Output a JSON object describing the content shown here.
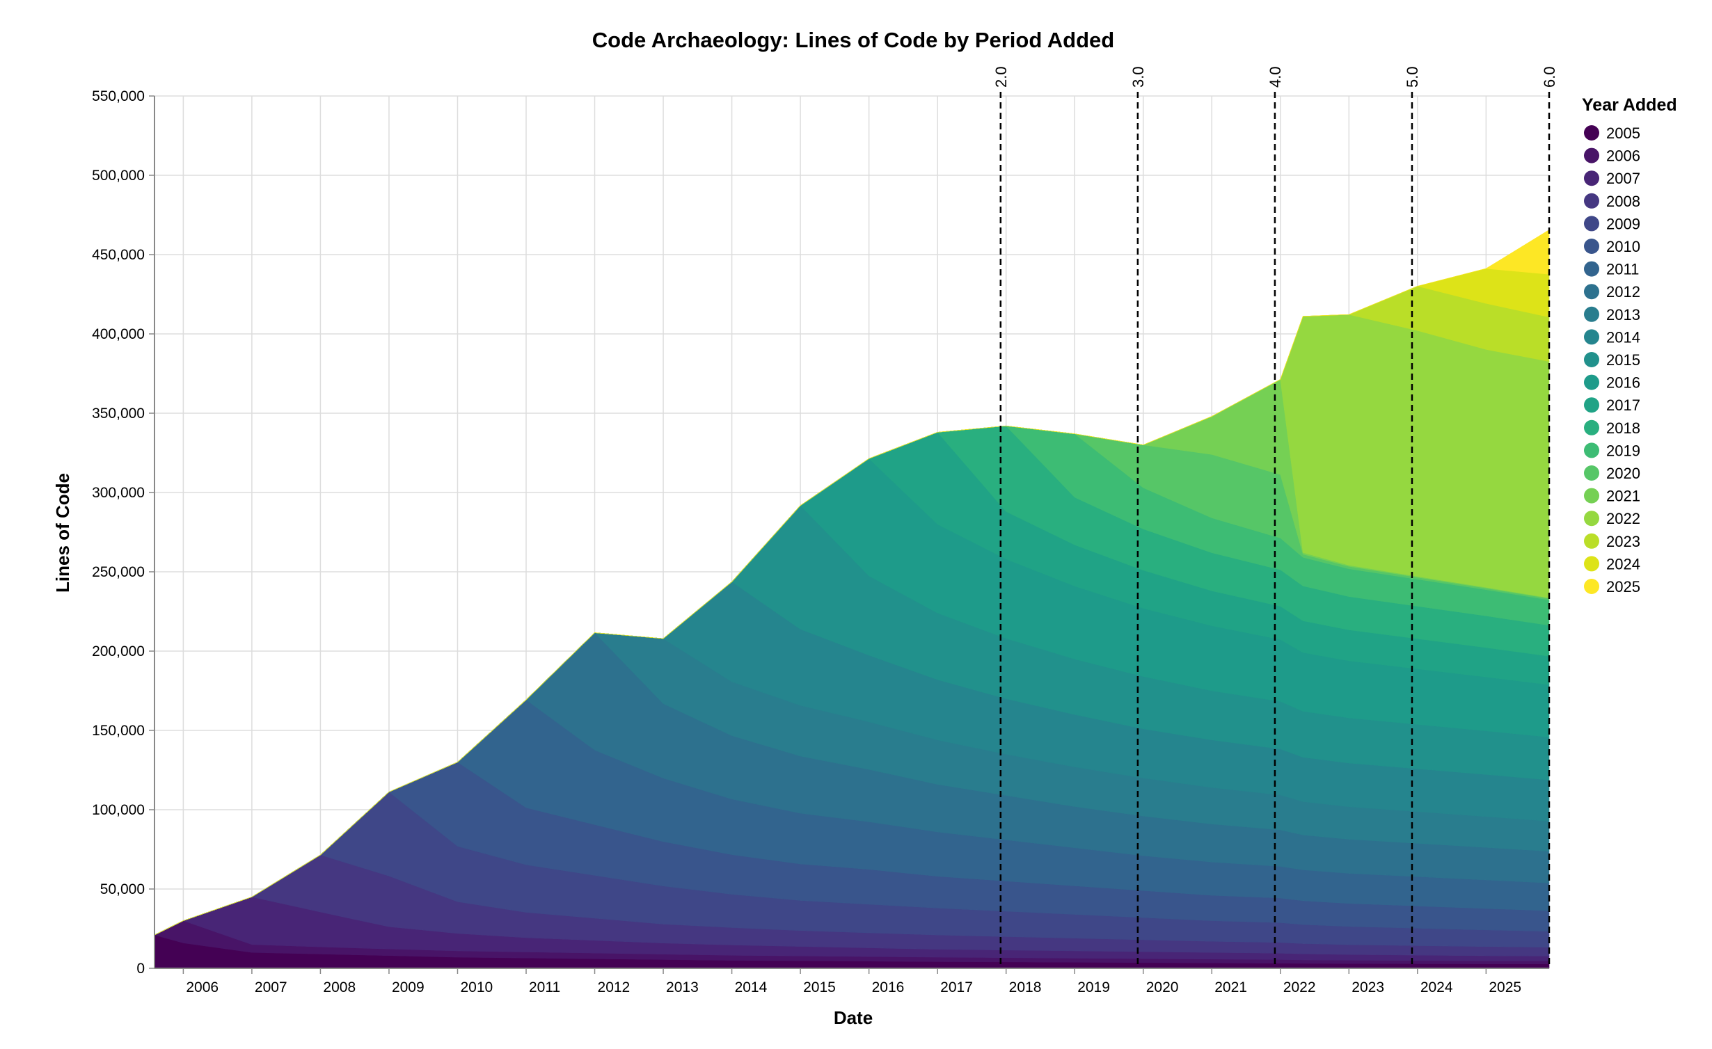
{
  "chart_data": {
    "type": "area",
    "stacked": true,
    "title": "Code Archaeology: Lines of Code by Period Added",
    "xlabel": "Date",
    "ylabel": "Lines of Code",
    "xlim": [
      2005.58,
      2025.92
    ],
    "ylim": [
      0,
      550000
    ],
    "grid": true,
    "x_tick_labels": [
      "2006",
      "2007",
      "2008",
      "2009",
      "2010",
      "2011",
      "2012",
      "2013",
      "2014",
      "2015",
      "2016",
      "2017",
      "2018",
      "2019",
      "2020",
      "2021",
      "2022",
      "2023",
      "2024",
      "2025"
    ],
    "y_tick_labels": [
      "0",
      "50,000",
      "100,000",
      "150,000",
      "200,000",
      "250,000",
      "300,000",
      "350,000",
      "400,000",
      "450,000",
      "500,000",
      "550,000"
    ],
    "y_ticks": [
      0,
      50000,
      100000,
      150000,
      200000,
      250000,
      300000,
      350000,
      400000,
      450000,
      500000,
      550000
    ],
    "legend_title": "Year Added",
    "legend_position": "right",
    "releases": [
      {
        "label": "2.0",
        "x": 2017.92
      },
      {
        "label": "3.0",
        "x": 2019.92
      },
      {
        "label": "4.0",
        "x": 2021.92
      },
      {
        "label": "5.0",
        "x": 2023.92
      },
      {
        "label": "6.0",
        "x": 2025.92
      }
    ],
    "x": [
      2005.58,
      2006.0,
      2007.0,
      2008.0,
      2009.0,
      2010.0,
      2011.0,
      2012.0,
      2013.0,
      2014.0,
      2015.0,
      2016.0,
      2017.0,
      2018.0,
      2019.0,
      2020.0,
      2021.0,
      2022.0,
      2022.33,
      2023.0,
      2024.0,
      2025.0,
      2025.92
    ],
    "series": [
      {
        "name": "2005",
        "color": "#440154",
        "values": [
          21000,
          16000,
          10000,
          9000,
          8000,
          7000,
          6500,
          6000,
          5500,
          5000,
          4800,
          4500,
          4200,
          4000,
          3800,
          3600,
          3400,
          3200,
          3100,
          3000,
          2900,
          2800,
          2800
        ]
      },
      {
        "name": "2006",
        "color": "#481467",
        "values": [
          0,
          14000,
          5000,
          4500,
          4200,
          4000,
          3800,
          3600,
          3400,
          3200,
          3000,
          2900,
          2800,
          2700,
          2600,
          2500,
          2400,
          2300,
          2200,
          2100,
          2000,
          1900,
          1900
        ]
      },
      {
        "name": "2007",
        "color": "#482576",
        "values": [
          0,
          0,
          30000,
          22000,
          14000,
          11000,
          9000,
          8000,
          7000,
          6500,
          6000,
          5500,
          5000,
          4800,
          4600,
          4400,
          4200,
          4000,
          3800,
          3600,
          3400,
          3200,
          3000
        ]
      },
      {
        "name": "2008",
        "color": "#453781",
        "values": [
          0,
          0,
          0,
          36000,
          32000,
          20000,
          16000,
          14000,
          12000,
          11000,
          10000,
          9500,
          9000,
          8500,
          8000,
          7500,
          7000,
          6800,
          6500,
          6200,
          6000,
          5800,
          5600
        ]
      },
      {
        "name": "2009",
        "color": "#3f4788",
        "values": [
          0,
          0,
          0,
          0,
          53000,
          35000,
          30000,
          27000,
          24000,
          21000,
          19000,
          18000,
          17000,
          16000,
          15000,
          14000,
          13000,
          12500,
          12000,
          11500,
          11000,
          10500,
          10000
        ]
      },
      {
        "name": "2010",
        "color": "#39558c",
        "values": [
          0,
          0,
          0,
          0,
          0,
          53000,
          36000,
          32000,
          28000,
          25000,
          23000,
          22000,
          20000,
          19000,
          18000,
          17000,
          16000,
          15500,
          15000,
          14500,
          14000,
          13500,
          13000
        ]
      },
      {
        "name": "2011",
        "color": "#32648e",
        "values": [
          0,
          0,
          0,
          0,
          0,
          0,
          68000,
          47000,
          40000,
          35000,
          32000,
          30000,
          28000,
          26000,
          24000,
          22000,
          21000,
          20000,
          19500,
          19000,
          18500,
          18000,
          17500
        ]
      },
      {
        "name": "2012",
        "color": "#2d718e",
        "values": [
          0,
          0,
          0,
          0,
          0,
          0,
          0,
          74000,
          47000,
          40000,
          36000,
          33000,
          30000,
          28000,
          26000,
          25000,
          24000,
          23000,
          22000,
          21500,
          21000,
          20500,
          20000
        ]
      },
      {
        "name": "2013",
        "color": "#297d8e",
        "values": [
          0,
          0,
          0,
          0,
          0,
          0,
          0,
          0,
          41000,
          34000,
          32000,
          30000,
          28000,
          26000,
          25000,
          24000,
          23000,
          22000,
          21000,
          20500,
          20000,
          19500,
          19000
        ]
      },
      {
        "name": "2014",
        "color": "#25858e",
        "values": [
          0,
          0,
          0,
          0,
          0,
          0,
          0,
          0,
          0,
          63000,
          48000,
          42000,
          38000,
          35000,
          33000,
          31000,
          30000,
          29000,
          28000,
          27500,
          27000,
          26500,
          26000
        ]
      },
      {
        "name": "2015",
        "color": "#21918c",
        "values": [
          0,
          0,
          0,
          0,
          0,
          0,
          0,
          0,
          0,
          0,
          78000,
          50000,
          42000,
          38000,
          35000,
          33000,
          31000,
          30000,
          29000,
          28500,
          28000,
          27500,
          27000
        ]
      },
      {
        "name": "2016",
        "color": "#1e9b8a",
        "values": [
          0,
          0,
          0,
          0,
          0,
          0,
          0,
          0,
          0,
          0,
          0,
          74000,
          56000,
          50000,
          46000,
          43000,
          41000,
          39000,
          37000,
          36000,
          35000,
          34000,
          33000
        ]
      },
      {
        "name": "2017",
        "color": "#20a386",
        "values": [
          0,
          0,
          0,
          0,
          0,
          0,
          0,
          0,
          0,
          0,
          0,
          0,
          58000,
          30000,
          26000,
          24000,
          22000,
          21000,
          20000,
          19500,
          19000,
          18500,
          18000
        ]
      },
      {
        "name": "2018",
        "color": "#29af7f",
        "values": [
          0,
          0,
          0,
          0,
          0,
          0,
          0,
          0,
          0,
          0,
          0,
          0,
          0,
          54000,
          30000,
          26000,
          24000,
          23000,
          22000,
          21000,
          20500,
          20000,
          19500
        ]
      },
      {
        "name": "2019",
        "color": "#3dbc74",
        "values": [
          0,
          0,
          0,
          0,
          0,
          0,
          0,
          0,
          0,
          0,
          0,
          0,
          0,
          0,
          40000,
          26000,
          22000,
          20000,
          18000,
          17500,
          17000,
          16500,
          16000
        ]
      },
      {
        "name": "2020",
        "color": "#56c667",
        "values": [
          0,
          0,
          0,
          0,
          0,
          0,
          0,
          0,
          0,
          0,
          0,
          0,
          0,
          0,
          0,
          27000,
          40000,
          40000,
          2000,
          1500,
          1200,
          1000,
          900
        ]
      },
      {
        "name": "2021",
        "color": "#75d054",
        "values": [
          0,
          0,
          0,
          0,
          0,
          0,
          0,
          0,
          0,
          0,
          0,
          0,
          0,
          0,
          0,
          0,
          24000,
          60000,
          1000,
          800,
          600,
          500,
          400
        ]
      },
      {
        "name": "2022",
        "color": "#95d840",
        "values": [
          0,
          0,
          0,
          0,
          0,
          0,
          0,
          0,
          0,
          0,
          0,
          0,
          0,
          0,
          0,
          0,
          0,
          0,
          149000,
          158000,
          155000,
          150000,
          149000
        ]
      },
      {
        "name": "2023",
        "color": "#bade28",
        "values": [
          0,
          0,
          0,
          0,
          0,
          0,
          0,
          0,
          0,
          0,
          0,
          0,
          0,
          0,
          0,
          0,
          0,
          0,
          0,
          0,
          28000,
          29000,
          28000
        ]
      },
      {
        "name": "2024",
        "color": "#dde318",
        "values": [
          0,
          0,
          0,
          0,
          0,
          0,
          0,
          0,
          0,
          0,
          0,
          0,
          0,
          0,
          0,
          0,
          0,
          0,
          0,
          0,
          0,
          22000,
          27000
        ]
      },
      {
        "name": "2025",
        "color": "#fde725",
        "values": [
          0,
          0,
          0,
          0,
          0,
          0,
          0,
          0,
          0,
          0,
          0,
          0,
          0,
          0,
          0,
          0,
          0,
          0,
          0,
          0,
          0,
          0,
          28000
        ]
      }
    ]
  }
}
